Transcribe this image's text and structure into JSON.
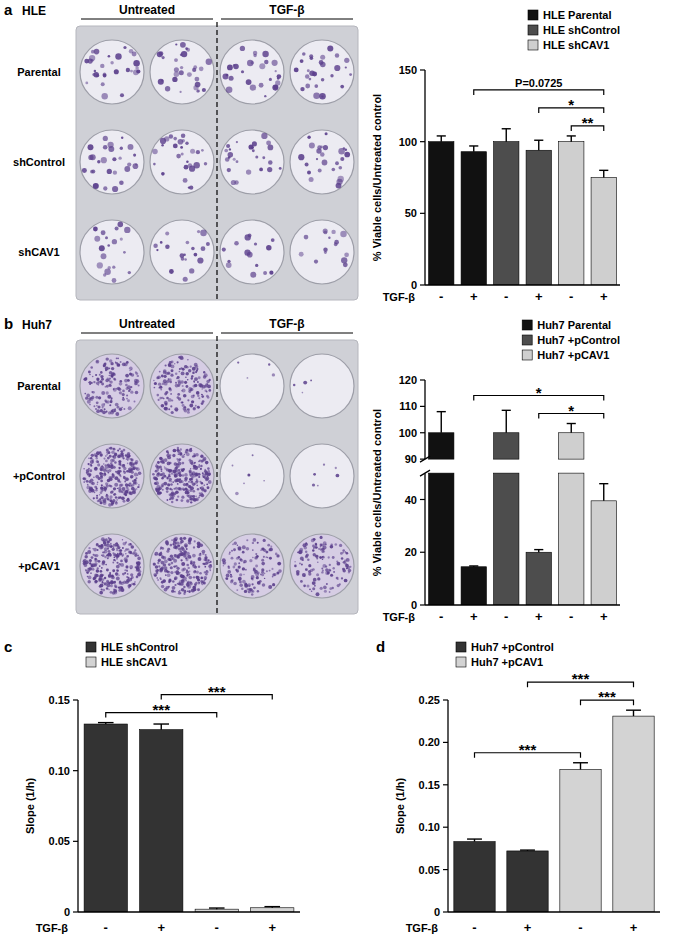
{
  "panel_labels": [
    "a",
    "b",
    "c",
    "d"
  ],
  "plates": [
    {
      "title": "HLE",
      "columns": [
        "Untreated",
        "TGF-β"
      ],
      "rows": [
        "Parental",
        "shControl",
        "shCAV1"
      ]
    },
    {
      "title": "Huh7",
      "columns": [
        "Untreated",
        "TGF-β"
      ],
      "rows": [
        "Parental",
        "+pControl",
        "+pCAV1"
      ]
    }
  ],
  "chart_data": [
    {
      "type": "bar",
      "ylabel": "% Viable cells/Untreated control",
      "xlabel": "TGF-β",
      "categories": [
        "-",
        "+",
        "-",
        "+",
        "-",
        "+"
      ],
      "ylim": [
        0,
        150
      ],
      "yticks": [
        0,
        50,
        100,
        150
      ],
      "legend": "top-right",
      "series": [
        {
          "name": "HLE Parental",
          "color": "#111111",
          "values": [
            100,
            93,
            null,
            null,
            null,
            null
          ],
          "errors": [
            4,
            4,
            null,
            null,
            null,
            null
          ]
        },
        {
          "name": "HLE shControl",
          "color": "#4d4d4d",
          "values": [
            null,
            null,
            100,
            94,
            null,
            null
          ],
          "errors": [
            null,
            null,
            9,
            7,
            null,
            null
          ]
        },
        {
          "name": "HLE shCAV1",
          "color": "#cfcfcf",
          "values": [
            null,
            null,
            null,
            null,
            100,
            75
          ],
          "errors": [
            null,
            null,
            null,
            null,
            4,
            5
          ]
        }
      ],
      "annotations": [
        {
          "from": 4,
          "to": 5,
          "text": "**"
        },
        {
          "from": 3,
          "to": 5,
          "text": "*"
        },
        {
          "from": 1,
          "to": 5,
          "text": "P=0.0725"
        }
      ]
    },
    {
      "type": "bar",
      "ylabel": "% Viable cells/Untreated control",
      "xlabel": "TGF-β",
      "categories": [
        "-",
        "+",
        "-",
        "+",
        "-",
        "+"
      ],
      "ylim": [
        0,
        120
      ],
      "y_break": [
        50,
        90
      ],
      "yticks": [
        0,
        20,
        40,
        90,
        100,
        110,
        120
      ],
      "legend": "top-right",
      "series": [
        {
          "name": "Huh7 Parental",
          "color": "#111111",
          "values": [
            100,
            14.5,
            null,
            null,
            null,
            null
          ],
          "errors": [
            8,
            0.3,
            null,
            null,
            null,
            null
          ]
        },
        {
          "name": "Huh7 +pControl",
          "color": "#4d4d4d",
          "values": [
            null,
            null,
            100,
            20,
            null,
            null
          ],
          "errors": [
            null,
            null,
            8.5,
            1,
            null,
            null
          ]
        },
        {
          "name": "Huh7 +pCAV1",
          "color": "#cfcfcf",
          "values": [
            null,
            null,
            null,
            null,
            100,
            39.5
          ],
          "errors": [
            null,
            null,
            null,
            null,
            3.5,
            6.5
          ]
        }
      ],
      "annotations": [
        {
          "from": 3,
          "to": 5,
          "text": "*"
        },
        {
          "from": 1,
          "to": 5,
          "text": "*"
        }
      ]
    },
    {
      "type": "bar",
      "ylabel": "Slope (1/h)",
      "xlabel": "TGF-β",
      "categories": [
        "-",
        "+",
        "-",
        "+"
      ],
      "ylim": [
        0,
        0.15
      ],
      "yticks": [
        0,
        0.05,
        {
          "value": 0.1,
          "label": "0.10"
        },
        0.15
      ],
      "legend": "top-left",
      "series": [
        {
          "name": "HLE shControl",
          "color": "#333333",
          "values": [
            0.133,
            0.129,
            null,
            null
          ],
          "errors": [
            0.001,
            0.004,
            null,
            null
          ]
        },
        {
          "name": "HLE shCAV1",
          "color": "#d3d3d3",
          "values": [
            null,
            null,
            0.002,
            0.003
          ],
          "errors": [
            null,
            null,
            0.0008,
            0.0008
          ]
        }
      ],
      "annotations": [
        {
          "from": 0,
          "to": 2,
          "text": "***"
        },
        {
          "from": 1,
          "to": 3,
          "text": "***"
        }
      ]
    },
    {
      "type": "bar",
      "ylabel": "Slope (1/h)",
      "xlabel": "TGF-β",
      "categories": [
        "-",
        "+",
        "-",
        "+"
      ],
      "ylim": [
        0,
        0.25
      ],
      "yticks": [
        0,
        0.05,
        {
          "value": 0.1,
          "label": "0.10"
        },
        0.15,
        {
          "value": 0.2,
          "label": "0.20"
        },
        0.25
      ],
      "legend": "top-left",
      "series": [
        {
          "name": "Huh7 +pControl",
          "color": "#333333",
          "values": [
            0.083,
            0.072,
            null,
            null
          ],
          "errors": [
            0.003,
            0.001,
            null,
            null
          ]
        },
        {
          "name": "Huh7 +pCAV1",
          "color": "#d3d3d3",
          "values": [
            null,
            null,
            0.168,
            0.231
          ],
          "errors": [
            null,
            null,
            0.008,
            0.007
          ]
        }
      ],
      "annotations": [
        {
          "from": 0,
          "to": 2,
          "text": "***"
        },
        {
          "from": 2,
          "to": 3,
          "text": "***"
        },
        {
          "from": 1,
          "to": 3,
          "text": "***"
        }
      ]
    }
  ]
}
